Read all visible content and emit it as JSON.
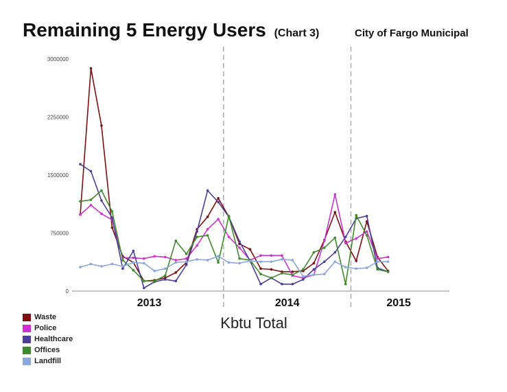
{
  "header": {
    "title": "Remaining 5 Energy Users",
    "subtitle": "(Chart 3)",
    "organization": "City of Fargo Municipal"
  },
  "chart_data": {
    "type": "line",
    "title": "Remaining 5 Energy Users",
    "xlabel": "Kbtu Total",
    "ylabel": "",
    "ylim": [
      0,
      3000000
    ],
    "yticks": [
      0,
      750000,
      1500000,
      2250000,
      3000000
    ],
    "ytick_labels": [
      "0",
      "750000",
      "1500000",
      "2250000",
      "3000000"
    ],
    "x_start": "2012-11",
    "x_end": "2015-09",
    "year_labels": [
      "2013",
      "2014",
      "2015"
    ],
    "year_dividers": [
      "2014-01",
      "2015-01"
    ],
    "grid": false,
    "legend_position": "bottom-left",
    "series": [
      {
        "name": "Waste",
        "color": "#7a1010",
        "values": [
          990000,
          2880000,
          2140000,
          820000,
          450000,
          370000,
          130000,
          140000,
          170000,
          240000,
          370000,
          800000,
          960000,
          1200000,
          960000,
          610000,
          540000,
          290000,
          280000,
          250000,
          250000,
          260000,
          360000,
          660000,
          1020000,
          640000,
          390000,
          900000,
          440000,
          260000
        ]
      },
      {
        "name": "Police",
        "color": "#cc33cc",
        "values": [
          990000,
          1110000,
          1000000,
          920000,
          430000,
          430000,
          420000,
          450000,
          440000,
          400000,
          420000,
          590000,
          800000,
          930000,
          700000,
          560000,
          400000,
          460000,
          460000,
          460000,
          200000,
          170000,
          210000,
          650000,
          1250000,
          620000,
          680000,
          770000,
          420000,
          440000
        ]
      },
      {
        "name": "Healthcare",
        "color": "#4b3f99",
        "values": [
          1640000,
          1550000,
          1170000,
          950000,
          290000,
          520000,
          40000,
          120000,
          150000,
          130000,
          340000,
          770000,
          1300000,
          1150000,
          960000,
          640000,
          390000,
          90000,
          170000,
          90000,
          90000,
          150000,
          280000,
          380000,
          500000,
          700000,
          940000,
          970000,
          300000,
          250000
        ]
      },
      {
        "name": "Offices",
        "color": "#3e8a2e",
        "values": [
          1160000,
          1180000,
          1300000,
          1030000,
          400000,
          270000,
          130000,
          130000,
          200000,
          650000,
          480000,
          700000,
          720000,
          370000,
          970000,
          420000,
          400000,
          220000,
          170000,
          230000,
          210000,
          280000,
          500000,
          560000,
          690000,
          90000,
          980000,
          720000,
          280000,
          250000
        ]
      },
      {
        "name": "Landfill",
        "color": "#8aa8dc",
        "values": [
          310000,
          350000,
          320000,
          350000,
          320000,
          370000,
          360000,
          260000,
          290000,
          370000,
          380000,
          410000,
          400000,
          450000,
          370000,
          360000,
          390000,
          380000,
          380000,
          410000,
          400000,
          190000,
          210000,
          220000,
          380000,
          310000,
          290000,
          300000,
          380000,
          380000
        ]
      }
    ]
  }
}
